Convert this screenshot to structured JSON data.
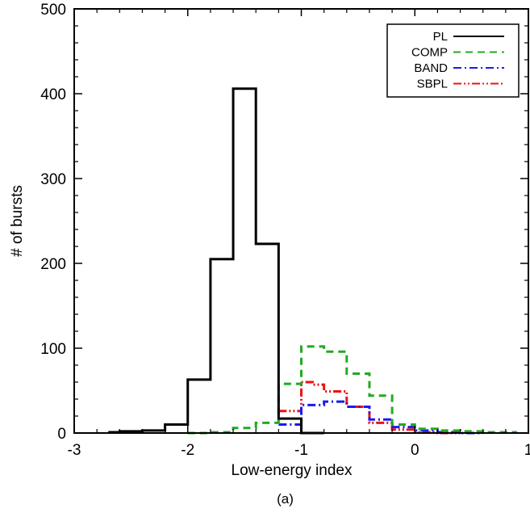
{
  "chart_data": {
    "type": "histogram-step",
    "xlabel": "Low-energy index",
    "ylabel": "# of bursts",
    "caption": "(a)",
    "xlim": [
      -3,
      1
    ],
    "ylim": [
      0,
      500
    ],
    "xticks": [
      "-3",
      "-2",
      "-1",
      "0",
      "1"
    ],
    "yticks": [
      "0",
      "100",
      "200",
      "300",
      "400",
      "500"
    ],
    "legend_position": "top-right",
    "series": [
      {
        "name": "PL",
        "color": "#000000",
        "dash": "solid",
        "bins": [
          {
            "x0": -2.7,
            "x1": -2.6,
            "y": 1
          },
          {
            "x0": -2.6,
            "x1": -2.4,
            "y": 2
          },
          {
            "x0": -2.4,
            "x1": -2.2,
            "y": 3
          },
          {
            "x0": -2.2,
            "x1": -2.0,
            "y": 10
          },
          {
            "x0": -2.0,
            "x1": -1.8,
            "y": 63
          },
          {
            "x0": -1.8,
            "x1": -1.6,
            "y": 205
          },
          {
            "x0": -1.6,
            "x1": -1.4,
            "y": 406
          },
          {
            "x0": -1.4,
            "x1": -1.2,
            "y": 223
          },
          {
            "x0": -1.2,
            "x1": -1.0,
            "y": 17
          },
          {
            "x0": -1.0,
            "x1": -0.8,
            "y": 0
          }
        ]
      },
      {
        "name": "COMP",
        "color": "#22aa22",
        "dash": "dashed",
        "bins": [
          {
            "x0": -2.0,
            "x1": -1.8,
            "y": 0
          },
          {
            "x0": -1.8,
            "x1": -1.6,
            "y": 1
          },
          {
            "x0": -1.6,
            "x1": -1.4,
            "y": 6
          },
          {
            "x0": -1.4,
            "x1": -1.2,
            "y": 12
          },
          {
            "x0": -1.2,
            "x1": -1.0,
            "y": 58
          },
          {
            "x0": -1.0,
            "x1": -0.8,
            "y": 102
          },
          {
            "x0": -0.8,
            "x1": -0.6,
            "y": 96
          },
          {
            "x0": -0.6,
            "x1": -0.4,
            "y": 70
          },
          {
            "x0": -0.4,
            "x1": -0.2,
            "y": 44
          },
          {
            "x0": -0.2,
            "x1": 0.0,
            "y": 10
          },
          {
            "x0": 0.0,
            "x1": 0.2,
            "y": 5
          },
          {
            "x0": 0.2,
            "x1": 0.4,
            "y": 3
          },
          {
            "x0": 0.4,
            "x1": 0.6,
            "y": 2
          },
          {
            "x0": 0.6,
            "x1": 0.9,
            "y": 1
          }
        ]
      },
      {
        "name": "BAND",
        "color": "#1a1aee",
        "dash": "dashdot",
        "bins": [
          {
            "x0": -1.2,
            "x1": -1.0,
            "y": 10
          },
          {
            "x0": -1.0,
            "x1": -0.8,
            "y": 33
          },
          {
            "x0": -0.8,
            "x1": -0.6,
            "y": 37
          },
          {
            "x0": -0.6,
            "x1": -0.4,
            "y": 31
          },
          {
            "x0": -0.4,
            "x1": -0.2,
            "y": 16
          },
          {
            "x0": -0.2,
            "x1": 0.0,
            "y": 7
          },
          {
            "x0": 0.0,
            "x1": 0.2,
            "y": 3
          },
          {
            "x0": 0.2,
            "x1": 0.4,
            "y": 1
          },
          {
            "x0": 0.4,
            "x1": 0.6,
            "y": 0
          }
        ]
      },
      {
        "name": "SBPL",
        "color": "#ee1111",
        "dash": "dashdotdot",
        "bins": [
          {
            "x0": -1.2,
            "x1": -1.0,
            "y": 26
          },
          {
            "x0": -1.0,
            "x1": -0.9,
            "y": 60
          },
          {
            "x0": -0.9,
            "x1": -0.8,
            "y": 57
          },
          {
            "x0": -0.8,
            "x1": -0.6,
            "y": 49
          },
          {
            "x0": -0.6,
            "x1": -0.4,
            "y": 31
          },
          {
            "x0": -0.4,
            "x1": -0.2,
            "y": 12
          },
          {
            "x0": -0.2,
            "x1": 0.0,
            "y": 4
          },
          {
            "x0": 0.0,
            "x1": 0.2,
            "y": 1
          },
          {
            "x0": 0.2,
            "x1": 0.4,
            "y": 0
          }
        ]
      }
    ]
  }
}
